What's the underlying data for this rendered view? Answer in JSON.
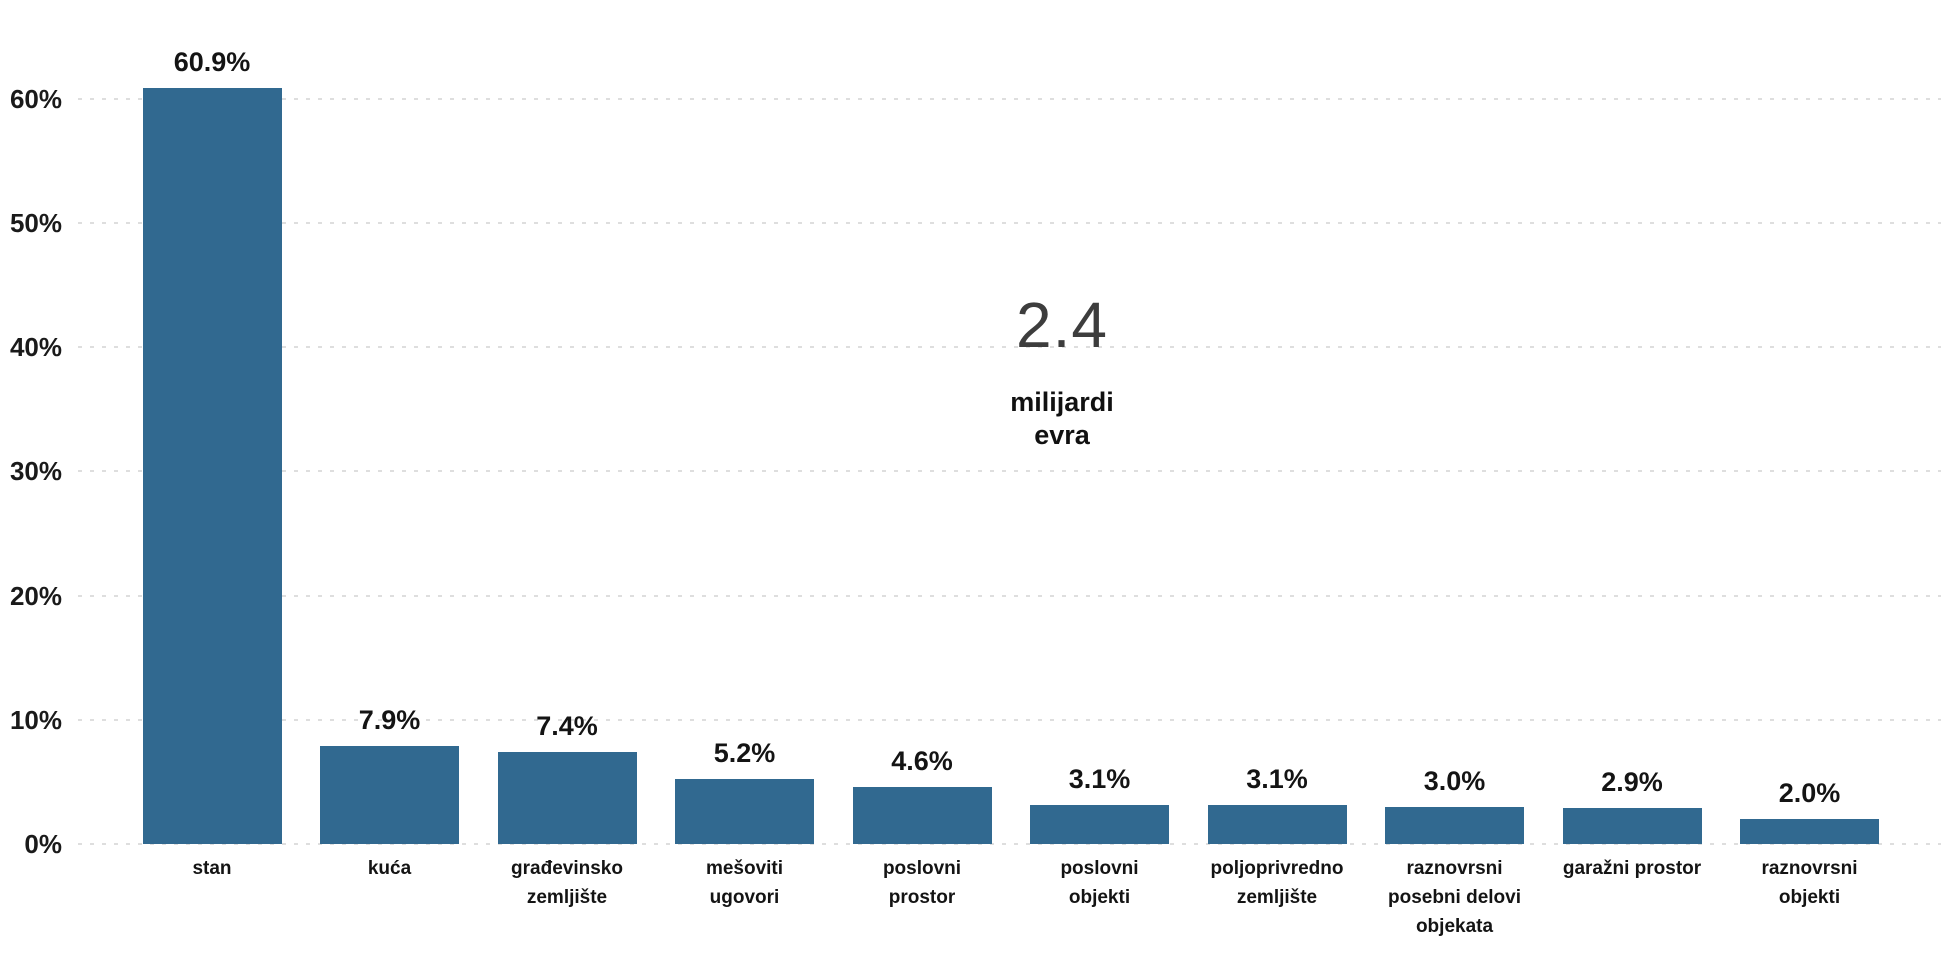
{
  "chart_data": {
    "type": "bar",
    "title": "",
    "categories": [
      "stan",
      "kuća",
      "građevinsko zemljište",
      "mešoviti ugovori",
      "poslovni prostor",
      "poslovni objekti",
      "poljoprivredno zemljište",
      "raznovrsni posebni delovi objekata",
      "garažni prostor",
      "raznovrsni objekti"
    ],
    "category_label_lines": [
      [
        "stan"
      ],
      [
        "kuća"
      ],
      [
        "građevinsko",
        "zemljište"
      ],
      [
        "mešoviti",
        "ugovori"
      ],
      [
        "poslovni",
        "prostor"
      ],
      [
        "poslovni",
        "objekti"
      ],
      [
        "poljoprivredno",
        "zemljište"
      ],
      [
        "raznovrsni",
        "posebni delovi",
        "objekata"
      ],
      [
        "garažni prostor"
      ],
      [
        "raznovrsni",
        "objekti"
      ]
    ],
    "values": [
      60.9,
      7.9,
      7.4,
      5.2,
      4.6,
      3.1,
      3.1,
      3.0,
      2.9,
      2.0
    ],
    "value_labels": [
      "60.9%",
      "7.9%",
      "7.4%",
      "5.2%",
      "4.6%",
      "3.1%",
      "3.1%",
      "3.0%",
      "2.9%",
      "2.0%"
    ],
    "unit": "%",
    "xlabel": "",
    "ylabel": "",
    "y_axis": {
      "ticks": [
        {
          "label": "0%",
          "value": 0
        },
        {
          "label": "10%",
          "value": 10
        },
        {
          "label": "20%",
          "value": 20
        },
        {
          "label": "30%",
          "value": 30
        },
        {
          "label": "40%",
          "value": 40
        },
        {
          "label": "50%",
          "value": 50
        },
        {
          "label": "60%",
          "value": 60
        }
      ],
      "range": [
        0,
        64.5
      ],
      "grid": "horizontal-dotted"
    },
    "legend": "none",
    "annotation": {
      "big_number": "2.4",
      "caption_line1": "milijardi",
      "caption_line2": "evra"
    }
  },
  "colors": {
    "bar": "#316990",
    "grid": "#dedede",
    "text": "#141414",
    "big_number": "#3d3d3d",
    "background": "#ffffff"
  }
}
